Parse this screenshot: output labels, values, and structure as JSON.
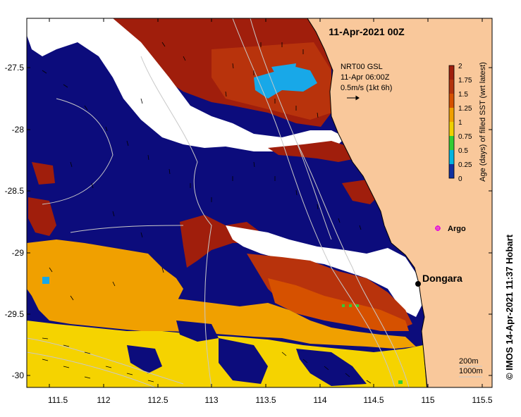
{
  "title": "11-Apr-2021 00Z",
  "current_info": {
    "line1": "NRT00 GSL",
    "line2": "11-Apr 06:00Z",
    "line3": "0.5m/s (1kt 6h)"
  },
  "colorbar": {
    "label": "Age (days) of filled SST (wrt latest)",
    "ticks": [
      "2",
      "1.75",
      "1.5",
      "1.25",
      "1",
      "0.75",
      "0.5",
      "0.25",
      "0"
    ],
    "colors": [
      "#a01e0c",
      "#b3330c",
      "#d65100",
      "#f0a000",
      "#f0d000",
      "#33cc33",
      "#00b4e0",
      "#1030a0",
      "#080878"
    ]
  },
  "lat_labels": [
    "-27.5",
    "-28",
    "-28.5",
    "-29",
    "-29.5",
    "-30"
  ],
  "lon_labels": [
    "111.5",
    "112",
    "112.5",
    "113",
    "113.5",
    "114",
    "114.5",
    "115",
    "115.5"
  ],
  "places": {
    "argo": "Argo",
    "dongara": "Dongara"
  },
  "depth_legend": {
    "contour1": "200m",
    "contour2": "1000m"
  },
  "credit": "© IMOS 14-Apr-2021 11:37 Hobart",
  "colors": {
    "land": "#f9c89b",
    "navy": "#0c0c7c",
    "darkred": "#a01e0c",
    "red": "#b8330c",
    "orange": "#f0a000",
    "yellow": "#f5d300",
    "cyan": "#18a8e8",
    "white": "#ffffff"
  }
}
